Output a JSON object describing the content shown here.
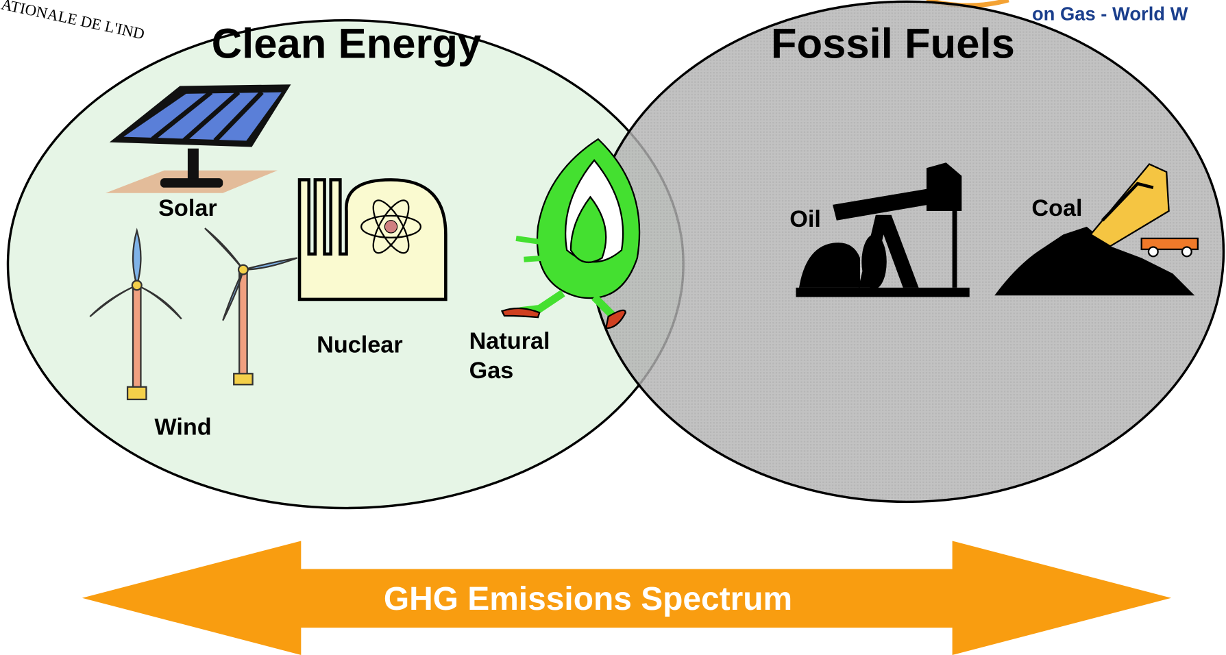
{
  "header": {
    "logo_text": "ATIONALE DE L'IND",
    "banner_text": "on Gas - World W"
  },
  "circles": [
    {
      "title": "Clean Energy",
      "items": [
        "Solar",
        "Wind",
        "Nuclear",
        "Natural",
        "Gas"
      ]
    },
    {
      "title": "Fossil Fuels",
      "items": [
        "Oil",
        "Coal"
      ]
    }
  ],
  "arrow": {
    "label": "GHG Emissions Spectrum"
  }
}
